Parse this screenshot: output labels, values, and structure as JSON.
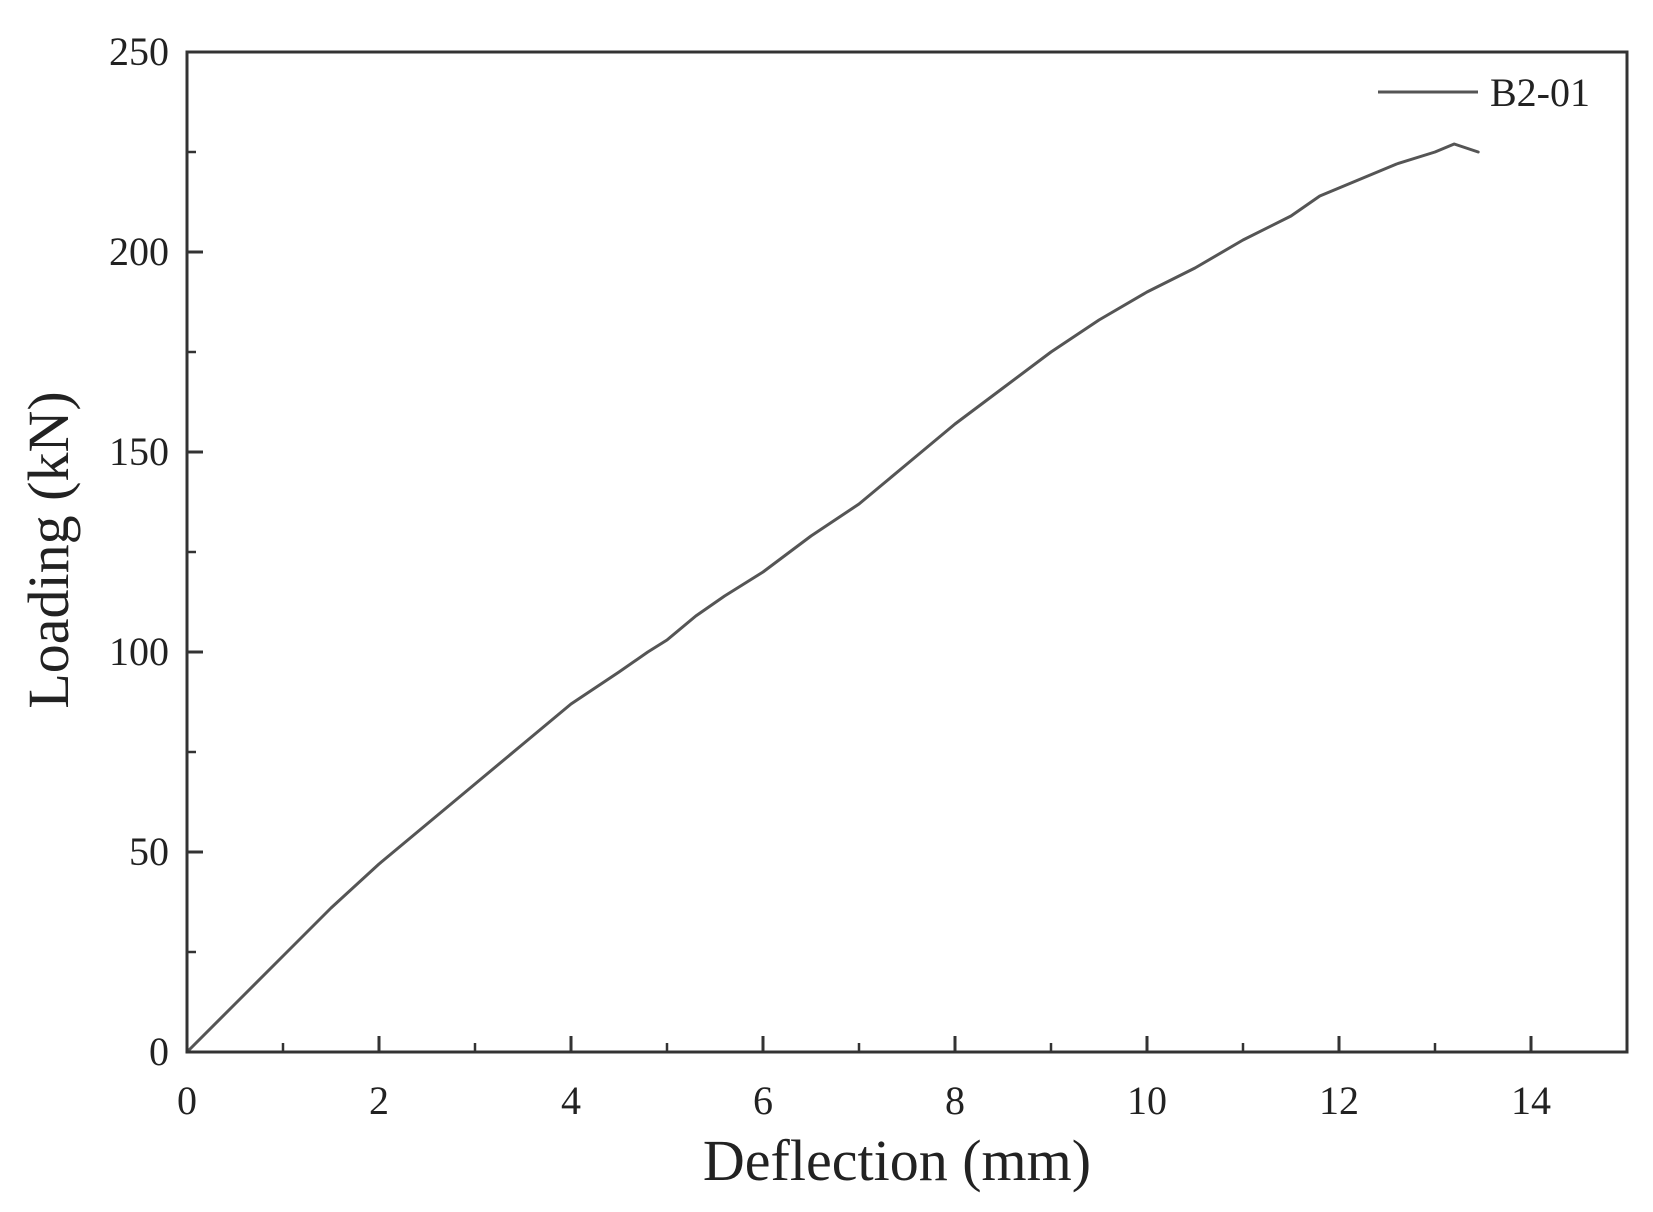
{
  "chart_data": {
    "type": "line",
    "title": "",
    "xlabel": "Deflection (mm)",
    "ylabel": "Loading (kN)",
    "xlim": [
      0,
      15
    ],
    "ylim": [
      0,
      250
    ],
    "xticks": [
      0,
      2,
      4,
      6,
      8,
      10,
      12,
      14
    ],
    "yticks": [
      0,
      50,
      100,
      150,
      200,
      250
    ],
    "grid": false,
    "legend_position": "top-right",
    "line_color": "#555555",
    "series": [
      {
        "name": "B2-01",
        "x": [
          0,
          0.5,
          1.0,
          1.5,
          2.0,
          2.5,
          3.0,
          3.5,
          4.0,
          4.5,
          4.8,
          5.0,
          5.3,
          5.6,
          6.0,
          6.5,
          7.0,
          7.2,
          7.5,
          8.0,
          8.5,
          9.0,
          9.5,
          10.0,
          10.5,
          11.0,
          11.5,
          11.8,
          12.2,
          12.6,
          13.0,
          13.2,
          13.45
        ],
        "y": [
          0,
          12,
          24,
          36,
          47,
          57,
          67,
          77,
          87,
          95,
          100,
          103,
          109,
          114,
          120,
          129,
          137,
          141,
          147,
          157,
          166,
          175,
          183,
          190,
          196,
          203,
          209,
          214,
          218,
          222,
          225,
          227,
          225
        ]
      }
    ]
  }
}
